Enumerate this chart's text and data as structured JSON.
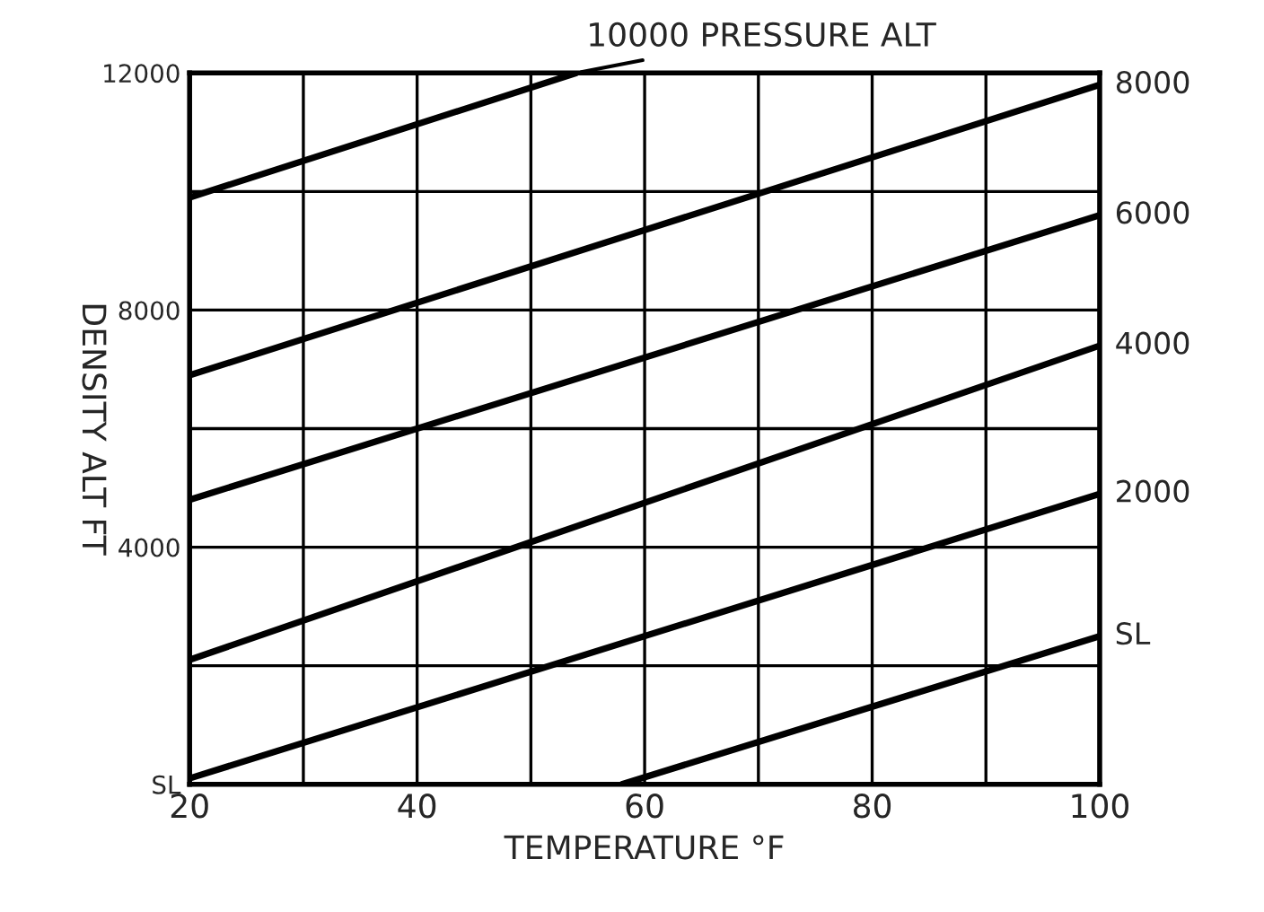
{
  "chart_data": {
    "type": "line",
    "xlabel": "TEMPERATURE °F",
    "ylabel": "DENSITY ALT FT",
    "series": [
      {
        "name": "10000 PRESSURE ALT",
        "color": "#000000",
        "x": [
          20,
          54
        ],
        "values": [
          9900,
          12000
        ]
      },
      {
        "name": "8000",
        "color": "#000000",
        "x": [
          20,
          100
        ],
        "values": [
          6900,
          11800
        ]
      },
      {
        "name": "6000",
        "color": "#000000",
        "x": [
          20,
          100
        ],
        "values": [
          4800,
          9600
        ]
      },
      {
        "name": "4000",
        "color": "#000000",
        "x": [
          20,
          100
        ],
        "values": [
          2100,
          7400
        ]
      },
      {
        "name": "2000",
        "color": "#000000",
        "x": [
          20,
          100
        ],
        "values": [
          100,
          4900
        ]
      },
      {
        "name": "SL",
        "color": "#000000",
        "x": [
          58,
          100
        ],
        "values": [
          0,
          2500
        ]
      }
    ],
    "xlim": [
      20,
      100
    ],
    "ylim": [
      0,
      12000
    ],
    "xticks": [
      20,
      {
        "value": 30,
        "label": null
      },
      40,
      {
        "value": 50,
        "label": null
      },
      60,
      {
        "value": 70,
        "label": null
      },
      80,
      {
        "value": 90,
        "label": null
      },
      100
    ],
    "yticks": [
      {
        "value": 0,
        "label": "SL"
      },
      {
        "value": 2000,
        "label": null
      },
      4000,
      {
        "value": 6000,
        "label": null
      },
      8000,
      {
        "value": 10000,
        "label": null
      },
      12000
    ],
    "grid": true,
    "marker": "none",
    "line_style": "solid",
    "legend": false
  }
}
